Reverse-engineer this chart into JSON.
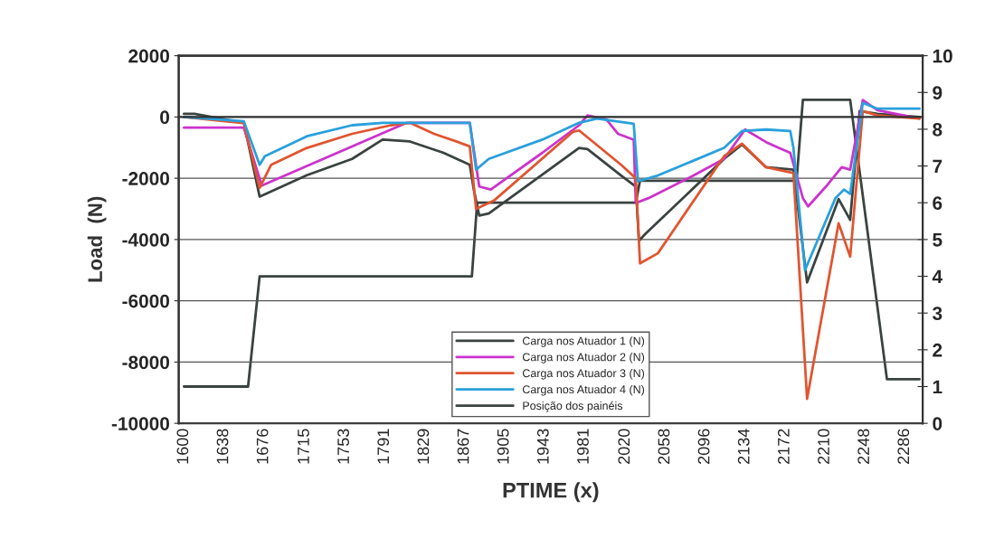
{
  "chart_data": {
    "type": "line",
    "xlabel": "PTIME (x)",
    "ylabel": "Load  (N)",
    "xlim": [
      1595,
      2303
    ],
    "xticks": [
      1600,
      1638,
      1676,
      1715,
      1753,
      1791,
      1829,
      1867,
      1905,
      1943,
      1981,
      2020,
      2058,
      2096,
      2134,
      2172,
      2210,
      2248,
      2286
    ],
    "ylim": [
      -10000,
      2000
    ],
    "yticks": [
      -10000,
      -8000,
      -6000,
      -4000,
      -2000,
      0,
      2000
    ],
    "y2lim": [
      0,
      10
    ],
    "y2ticks": [
      0,
      1,
      2,
      3,
      4,
      5,
      6,
      7,
      8,
      9,
      10
    ],
    "grid": "y",
    "legend": "bottom",
    "line_style": "solid",
    "marker": "none",
    "series": [
      {
        "name": "Carga nos Atuador 1 (N)",
        "color": "#3a4340",
        "x": [
          1600,
          1610,
          1657,
          1672,
          1717,
          1760,
          1789,
          1815,
          1847,
          1872,
          1876,
          1881,
          1890,
          1976,
          1984,
          2016,
          2030,
          2033,
          2039,
          2114,
          2131,
          2154,
          2180,
          2193,
          2223,
          2234,
          2243,
          2260,
          2300
        ],
        "values": [
          100,
          100,
          -190,
          -2600,
          -1900,
          -1370,
          -740,
          -800,
          -1170,
          -1560,
          -2400,
          -3220,
          -3150,
          -1010,
          -1050,
          -1910,
          -2270,
          -4040,
          -3820,
          -1370,
          -900,
          -1640,
          -1720,
          -5400,
          -2680,
          -3360,
          190,
          100,
          0
        ]
      },
      {
        "name": "Carga nos Atuador 2 (N)",
        "color": "#cc33cc",
        "x": [
          1600,
          1657,
          1674,
          1812,
          1872,
          1881,
          1892,
          1941,
          1976,
          1984,
          2002,
          2013,
          2028,
          2030,
          2042,
          2085,
          2114,
          2134,
          2154,
          2166,
          2177,
          2189,
          2194,
          2211,
          2226,
          2234,
          2246,
          2260,
          2300
        ],
        "values": [
          -350,
          -350,
          -2240,
          -190,
          -190,
          -2270,
          -2370,
          -1170,
          -270,
          50,
          -80,
          -550,
          -740,
          -2810,
          -2650,
          -1910,
          -1370,
          -410,
          -820,
          -1010,
          -1170,
          -2650,
          -2920,
          -2270,
          -1640,
          -1720,
          550,
          220,
          -50
        ]
      },
      {
        "name": "Carga nos Atuador 3 (N)",
        "color": "#e05530",
        "x": [
          1600,
          1657,
          1672,
          1683,
          1717,
          1760,
          1797,
          1815,
          1838,
          1861,
          1872,
          1878,
          1895,
          1970,
          1976,
          2016,
          2030,
          2034,
          2051,
          2114,
          2131,
          2154,
          2180,
          2193,
          2223,
          2234,
          2246,
          2260,
          2300
        ],
        "values": [
          0,
          -200,
          -2320,
          -1560,
          -1010,
          -550,
          -270,
          -190,
          -550,
          -820,
          -960,
          -3000,
          -2730,
          -490,
          -440,
          -1560,
          -2000,
          -4780,
          -4450,
          -1280,
          -870,
          -1640,
          -1830,
          -9200,
          -3470,
          -4560,
          190,
          50,
          -50
        ]
      },
      {
        "name": "Carga nos Atuador 4 (N)",
        "color": "#2aa0dc",
        "x": [
          1600,
          1657,
          1672,
          1677,
          1717,
          1760,
          1789,
          1872,
          1878,
          1890,
          1941,
          1976,
          1993,
          2028,
          2032,
          2051,
          2114,
          2131,
          2154,
          2177,
          2180,
          2191,
          2220,
          2228,
          2234,
          2246,
          2260,
          2300
        ],
        "values": [
          0,
          -140,
          -1560,
          -1280,
          -630,
          -270,
          -190,
          -190,
          -1720,
          -1370,
          -740,
          -190,
          -50,
          -220,
          -2100,
          -1910,
          -1010,
          -460,
          -410,
          -460,
          -1010,
          -5000,
          -2650,
          -2370,
          -2510,
          460,
          270,
          270
        ]
      },
      {
        "name": "Posição dos painéis",
        "color": "#3a4340",
        "axis": "y2",
        "x": [
          1600,
          1661,
          1672,
          1874,
          1879,
          2030,
          2034,
          2183,
          2189,
          2234,
          2269,
          2300
        ],
        "values": [
          1,
          1,
          4,
          4,
          6,
          6,
          6.6,
          6.6,
          8.8,
          8.8,
          1.2,
          1.2
        ]
      }
    ]
  }
}
